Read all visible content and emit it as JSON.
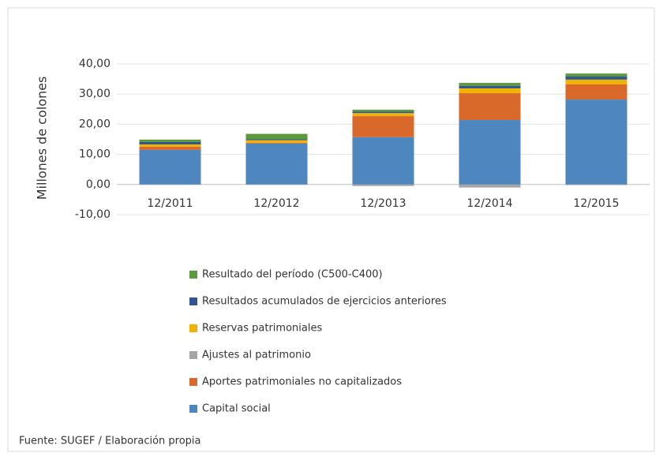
{
  "chart_data": {
    "type": "bar",
    "stacked": true,
    "y_label": "Millones de colones",
    "source": "Fuente: SUGEF / Elaboración propia",
    "categories": [
      "12/2011",
      "12/2012",
      "12/2013",
      "12/2014",
      "12/2015"
    ],
    "series": [
      {
        "name": "Capital social",
        "color": "#4e86c0",
        "values": [
          11.5,
          13.6,
          15.7,
          21.4,
          28.2
        ]
      },
      {
        "name": "Aportes patrimoniales no capitalizados",
        "color": "#d9692b",
        "values": [
          1.0,
          0.3,
          7.0,
          8.9,
          5.0
        ]
      },
      {
        "name": "Ajustes al patrimonio",
        "color": "#a5a5a5",
        "values": [
          -0.1,
          -0.1,
          -0.5,
          -1.0,
          -0.2
        ]
      },
      {
        "name": "Reservas patrimoniales",
        "color": "#f0b400",
        "values": [
          0.8,
          0.8,
          1.0,
          1.6,
          1.6
        ]
      },
      {
        "name": "Resultados acumulados de ejercicios anteriores",
        "color": "#2f5597",
        "values": [
          0.8,
          0.3,
          0.5,
          0.8,
          1.0
        ]
      },
      {
        "name": "Resultado del período (C500-C400)",
        "color": "#5b9a3b",
        "values": [
          0.8,
          1.8,
          0.6,
          1.0,
          1.0
        ]
      }
    ],
    "ylim": [
      -10,
      40
    ],
    "yticks": [
      {
        "value": -10,
        "label": "-10,00"
      },
      {
        "value": 0,
        "label": "0,00"
      },
      {
        "value": 10,
        "label": "10,00"
      },
      {
        "value": 20,
        "label": "20,00"
      },
      {
        "value": 30,
        "label": "30,00"
      },
      {
        "value": 40,
        "label": "40,00"
      }
    ],
    "grid": true
  }
}
